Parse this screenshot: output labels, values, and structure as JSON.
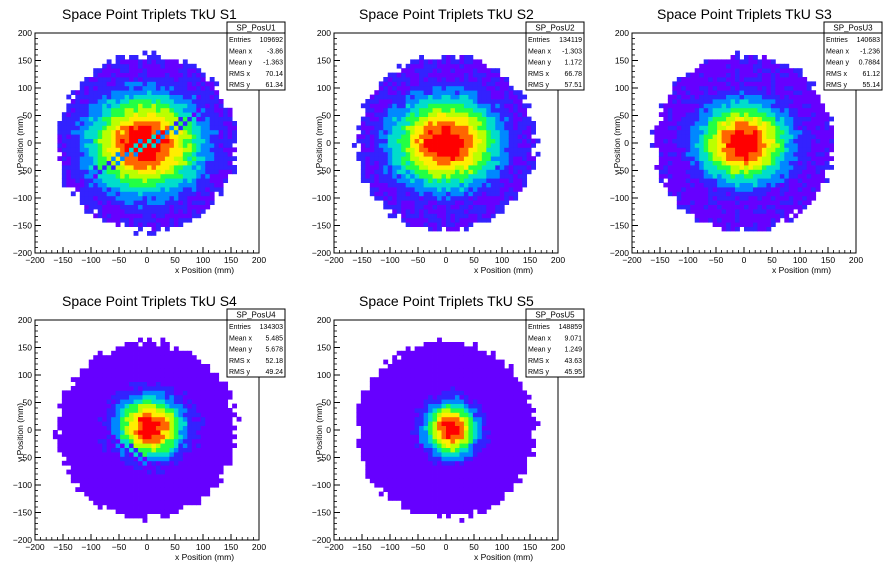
{
  "chart_data": [
    {
      "type": "heatmap",
      "title": "Space Point Triplets TkU S1",
      "xlabel": "x Position (mm)",
      "ylabel": "y Position (mm)",
      "xlim": [
        -200,
        200
      ],
      "ylim": [
        -200,
        200
      ],
      "xticks": [
        -200,
        -150,
        -100,
        -50,
        0,
        50,
        100,
        150,
        200
      ],
      "yticks": [
        -200,
        -150,
        -100,
        -50,
        0,
        50,
        100,
        150,
        200
      ],
      "stats": {
        "name": "SP_PosU1",
        "rows": [
          [
            "Entries",
            "109692"
          ],
          [
            "Mean x",
            "-3.86"
          ],
          [
            "Mean y",
            "-1.363"
          ],
          [
            "RMS x",
            "70.14"
          ],
          [
            "RMS y",
            "61.34"
          ]
        ]
      },
      "colormap": [
        "#6600ff",
        "#3322ff",
        "#0088ff",
        "#00ddcc",
        "#22ff44",
        "#bbff00",
        "#ffee00",
        "#ff6600",
        "#ff0000"
      ],
      "radius": 160,
      "mean_x": -3.86,
      "mean_y": -1.363,
      "rms_x": 70.14,
      "rms_y": 61.34,
      "falloff": 1.1,
      "floor": 0.1,
      "stripe_angle_deg": 30,
      "stripe_width": 10,
      "stripe_length": 110
    },
    {
      "type": "heatmap",
      "title": "Space Point Triplets TkU S2",
      "xlabel": "x Position (mm)",
      "ylabel": "y Position (mm)",
      "xlim": [
        -200,
        200
      ],
      "ylim": [
        -200,
        200
      ],
      "xticks": [
        -200,
        -150,
        -100,
        -50,
        0,
        50,
        100,
        150,
        200
      ],
      "yticks": [
        -200,
        -150,
        -100,
        -50,
        0,
        50,
        100,
        150,
        200
      ],
      "stats": {
        "name": "SP_PosU2",
        "rows": [
          [
            "Entries",
            "134119"
          ],
          [
            "Mean x",
            "-1.303"
          ],
          [
            "Mean y",
            "1.172"
          ],
          [
            "RMS x",
            "66.78"
          ],
          [
            "RMS y",
            "57.51"
          ]
        ]
      },
      "colormap": [
        "#6600ff",
        "#3322ff",
        "#0088ff",
        "#00ddcc",
        "#22ff44",
        "#bbff00",
        "#ffee00",
        "#ff6600",
        "#ff0000"
      ],
      "radius": 160,
      "mean_x": -1.303,
      "mean_y": 1.172,
      "rms_x": 66.78,
      "rms_y": 57.51,
      "falloff": 1.15,
      "floor": 0.1
    },
    {
      "type": "heatmap",
      "title": "Space Point Triplets TkU S3",
      "xlabel": "x Position (mm)",
      "ylabel": "y Position (mm)",
      "xlim": [
        -200,
        200
      ],
      "ylim": [
        -200,
        200
      ],
      "xticks": [
        -200,
        -150,
        -100,
        -50,
        0,
        50,
        100,
        150,
        200
      ],
      "yticks": [
        -200,
        -150,
        -100,
        -50,
        0,
        50,
        100,
        150,
        200
      ],
      "stats": {
        "name": "SP_PosU3",
        "rows": [
          [
            "Entries",
            "140683"
          ],
          [
            "Mean x",
            "-1.236"
          ],
          [
            "Mean y",
            "0.7884"
          ],
          [
            "RMS x",
            "61.12"
          ],
          [
            "RMS y",
            "55.14"
          ]
        ]
      },
      "colormap": [
        "#6600ff",
        "#3322ff",
        "#0088ff",
        "#00ddcc",
        "#22ff44",
        "#bbff00",
        "#ffee00",
        "#ff6600",
        "#ff0000"
      ],
      "radius": 160,
      "mean_x": -1.236,
      "mean_y": 0.7884,
      "rms_x": 61.12,
      "rms_y": 55.14,
      "falloff": 1.35,
      "floor": 0.08
    },
    {
      "type": "heatmap",
      "title": "Space Point Triplets TkU S4",
      "xlabel": "x Position (mm)",
      "ylabel": "y Position (mm)",
      "xlim": [
        -200,
        200
      ],
      "ylim": [
        -200,
        200
      ],
      "xticks": [
        -200,
        -150,
        -100,
        -50,
        0,
        50,
        100,
        150,
        200
      ],
      "yticks": [
        -200,
        -150,
        -100,
        -50,
        0,
        50,
        100,
        150,
        200
      ],
      "stats": {
        "name": "SP_PosU4",
        "rows": [
          [
            "Entries",
            "134303"
          ],
          [
            "Mean x",
            "5.485"
          ],
          [
            "Mean y",
            "5.678"
          ],
          [
            "RMS x",
            "52.18"
          ],
          [
            "RMS y",
            "49.24"
          ]
        ]
      },
      "colormap": [
        "#6600ff",
        "#3322ff",
        "#0088ff",
        "#00ddcc",
        "#22ff44",
        "#bbff00",
        "#ffee00",
        "#ff6600",
        "#ff0000"
      ],
      "radius": 160,
      "mean_x": 5.485,
      "mean_y": 5.678,
      "rms_x": 52.18,
      "rms_y": 49.24,
      "falloff": 1.9,
      "floor": 0.02,
      "stripe_angle_deg": -35,
      "stripe_width": 10,
      "stripe_length": 70,
      "stripe_offset": [
        -40,
        -30
      ]
    },
    {
      "type": "heatmap",
      "title": "Space Point Triplets TkU S5",
      "xlabel": "x Position (mm)",
      "ylabel": "y Position (mm)",
      "xlim": [
        -200,
        200
      ],
      "ylim": [
        -200,
        200
      ],
      "xticks": [
        -200,
        -150,
        -100,
        -50,
        0,
        50,
        100,
        150,
        200
      ],
      "yticks": [
        -200,
        -150,
        -100,
        -50,
        0,
        50,
        100,
        150,
        200
      ],
      "stats": {
        "name": "SP_PosU5",
        "rows": [
          [
            "Entries",
            "148859"
          ],
          [
            "Mean x",
            "9.071"
          ],
          [
            "Mean y",
            "1.249"
          ],
          [
            "RMS x",
            "43.63"
          ],
          [
            "RMS y",
            "45.95"
          ]
        ]
      },
      "colormap": [
        "#6600ff",
        "#3322ff",
        "#0088ff",
        "#00ddcc",
        "#22ff44",
        "#bbff00",
        "#ffee00",
        "#ff6600",
        "#ff0000"
      ],
      "radius": 160,
      "mean_x": 9.071,
      "mean_y": 1.249,
      "rms_x": 43.63,
      "rms_y": 45.95,
      "falloff": 2.2,
      "floor": 0.01
    }
  ]
}
